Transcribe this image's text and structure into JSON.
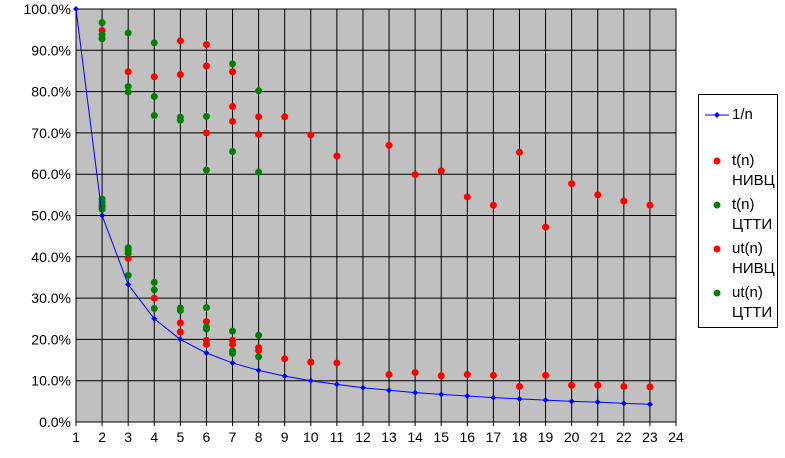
{
  "chart_data": {
    "type": "scatter",
    "x_ticks": [
      1,
      2,
      3,
      4,
      5,
      6,
      7,
      8,
      9,
      10,
      11,
      12,
      13,
      14,
      15,
      16,
      17,
      18,
      19,
      20,
      21,
      22,
      23,
      24
    ],
    "xlim": [
      1,
      24
    ],
    "ylim": [
      0,
      100
    ],
    "y_ticks": [
      "0.0%",
      "10.0%",
      "20.0%",
      "30.0%",
      "40.0%",
      "50.0%",
      "60.0%",
      "70.0%",
      "80.0%",
      "90.0%",
      "100.0%"
    ],
    "grid": true,
    "legend_position": "right",
    "series": [
      {
        "name": "1/n",
        "style": "line-marker",
        "color": "#0000ff",
        "points": [
          [
            1,
            100
          ],
          [
            2,
            50
          ],
          [
            3,
            33.3
          ],
          [
            4,
            25
          ],
          [
            5,
            20
          ],
          [
            6,
            16.7
          ],
          [
            7,
            14.3
          ],
          [
            8,
            12.5
          ],
          [
            9,
            11.1
          ],
          [
            10,
            10
          ],
          [
            11,
            9.1
          ],
          [
            12,
            8.3
          ],
          [
            13,
            7.7
          ],
          [
            14,
            7.1
          ],
          [
            15,
            6.7
          ],
          [
            16,
            6.3
          ],
          [
            17,
            5.9
          ],
          [
            18,
            5.6
          ],
          [
            19,
            5.3
          ],
          [
            20,
            5
          ],
          [
            21,
            4.8
          ],
          [
            22,
            4.5
          ],
          [
            23,
            4.3
          ]
        ]
      },
      {
        "name": "t(n)\nНИВЦ",
        "style": "marker",
        "color": "#ff0000",
        "points": [
          [
            2,
            94.8
          ],
          [
            3,
            84.8
          ],
          [
            4,
            83.6
          ],
          [
            5,
            92.3
          ],
          [
            5,
            84.1
          ],
          [
            6,
            91.4
          ],
          [
            6,
            86.2
          ],
          [
            6,
            70
          ],
          [
            7,
            84.8
          ],
          [
            7,
            76.4
          ],
          [
            7,
            72.8
          ],
          [
            8,
            73.9
          ],
          [
            8,
            69.6
          ],
          [
            9,
            73.9
          ],
          [
            10,
            69.5
          ],
          [
            11,
            64.4
          ],
          [
            13,
            67
          ],
          [
            14,
            59.9
          ],
          [
            15,
            60.8
          ],
          [
            16,
            54.5
          ],
          [
            17,
            52.5
          ],
          [
            18,
            65.3
          ],
          [
            19,
            47.2
          ],
          [
            20,
            57.7
          ],
          [
            21,
            55
          ],
          [
            22,
            53.5
          ],
          [
            23,
            52.5
          ]
        ]
      },
      {
        "name": "t(n)\nЦТТИ",
        "style": "marker",
        "color": "#008000",
        "points": [
          [
            2,
            96.7
          ],
          [
            2,
            93.8
          ],
          [
            2,
            92.8
          ],
          [
            3,
            94.2
          ],
          [
            3,
            81.2
          ],
          [
            3,
            79.9
          ],
          [
            4,
            91.8
          ],
          [
            4,
            78.8
          ],
          [
            4,
            74.2
          ],
          [
            5,
            73.8
          ],
          [
            5,
            73.1
          ],
          [
            6,
            74
          ],
          [
            6,
            61
          ],
          [
            7,
            86.7
          ],
          [
            7,
            65.5
          ],
          [
            8,
            80.2
          ],
          [
            8,
            60.5
          ]
        ]
      },
      {
        "name": "ut(n)\nНИВЦ",
        "style": "marker",
        "color": "#ff0000",
        "points": [
          [
            2,
            52
          ],
          [
            3,
            39.6
          ],
          [
            4,
            30
          ],
          [
            5,
            24
          ],
          [
            5,
            21.8
          ],
          [
            6,
            24.3
          ],
          [
            6,
            19.8
          ],
          [
            6,
            18.8
          ],
          [
            7,
            19.8
          ],
          [
            7,
            18.8
          ],
          [
            8,
            18
          ],
          [
            8,
            17.3
          ],
          [
            9,
            15.3
          ],
          [
            10,
            14.5
          ],
          [
            11,
            14.3
          ],
          [
            13,
            11.5
          ],
          [
            14,
            12
          ],
          [
            15,
            11.2
          ],
          [
            16,
            11.5
          ],
          [
            17,
            11.3
          ],
          [
            18,
            8.6
          ],
          [
            19,
            11.3
          ],
          [
            20,
            8.9
          ],
          [
            21,
            8.9
          ],
          [
            22,
            8.6
          ],
          [
            23,
            8.5
          ]
        ]
      },
      {
        "name": "ut(n)\nЦТТИ",
        "style": "marker",
        "color": "#008000",
        "points": [
          [
            2,
            54
          ],
          [
            2,
            53.2
          ],
          [
            2,
            52.5
          ],
          [
            2,
            51.5
          ],
          [
            3,
            42.2
          ],
          [
            3,
            41.5
          ],
          [
            3,
            40.8
          ],
          [
            3,
            35.5
          ],
          [
            4,
            33.8
          ],
          [
            4,
            32
          ],
          [
            4,
            27.5
          ],
          [
            5,
            27.6
          ],
          [
            5,
            27
          ],
          [
            6,
            27.7
          ],
          [
            6,
            23
          ],
          [
            6,
            22.5
          ],
          [
            7,
            22
          ],
          [
            7,
            17.2
          ],
          [
            7,
            16.6
          ],
          [
            8,
            21
          ],
          [
            8,
            15.8
          ]
        ]
      }
    ]
  }
}
